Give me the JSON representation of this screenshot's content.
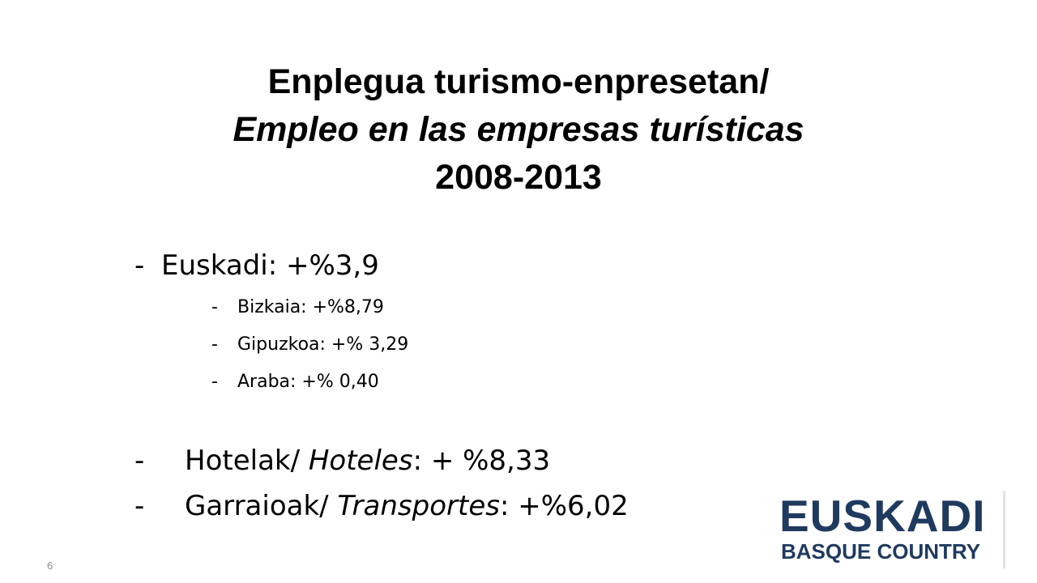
{
  "slide": {
    "title_line1": "Enplegua turismo-enpresetan/",
    "title_line2": "Empleo en las empresas turísticas",
    "title_line3": "2008-2013",
    "page_number": "6"
  },
  "items": {
    "euskadi": {
      "dash": "-",
      "text": "Euskadi: +%3,9"
    },
    "bizkaia": {
      "dash": "-",
      "text": "Bizkaia: +%8,79"
    },
    "gipuzkoa": {
      "dash": "-",
      "text": "Gipuzkoa: +% 3,29"
    },
    "araba": {
      "dash": "-",
      "text": "Araba: +% 0,40"
    },
    "hotelak": {
      "dash": "-",
      "label": "Hotelak/ ",
      "label_italic": "Hoteles",
      "value": ": + %8,33"
    },
    "garraioak": {
      "dash": "-",
      "label": "Garraioak/ ",
      "label_italic": "Transportes",
      "value": ": +%6,02"
    }
  },
  "logo": {
    "line1": "EUSKADI",
    "line2": "BASQUE COUNTRY"
  },
  "colors": {
    "logo": "#1f3a5f",
    "page_number": "#8c8c8c"
  }
}
